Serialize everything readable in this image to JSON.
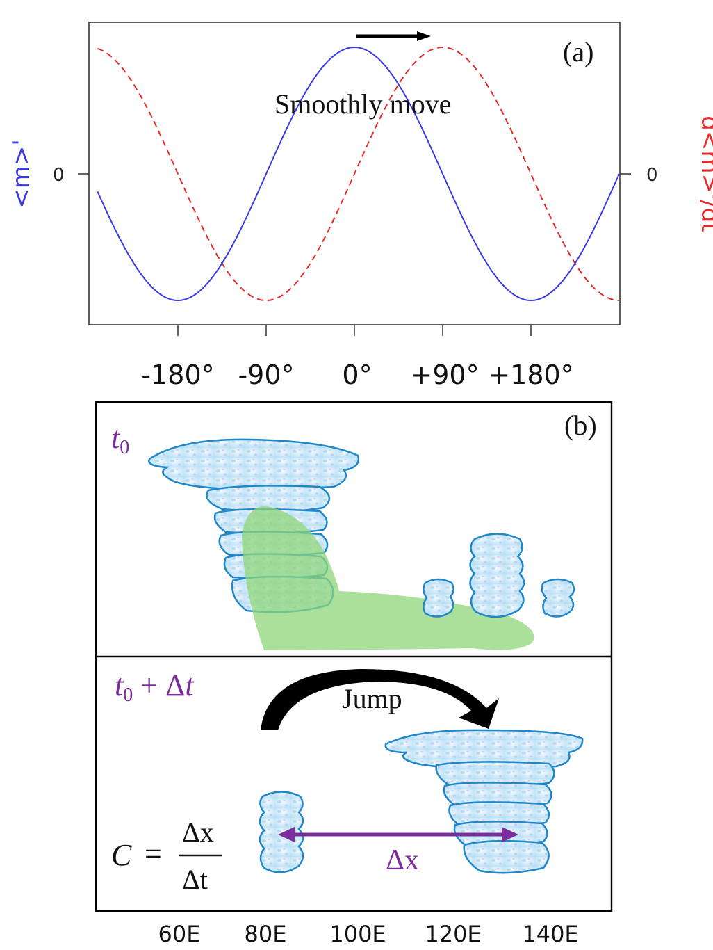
{
  "panel_a": {
    "label": "(a)",
    "left_axis_label": "<m>'",
    "right_axis_label": "d<m>'/dt",
    "left_zero": "0",
    "right_zero": "0",
    "annotation": "Smoothly move",
    "x_ticks": [
      "-180°",
      "-90°",
      "0°",
      "+90°",
      "+180°"
    ]
  },
  "panel_b": {
    "label": "(b)",
    "top_time": {
      "t": "t",
      "sub": "0"
    },
    "bottom_time": {
      "t": "t",
      "sub": "0",
      "rest": " + Δ",
      "t2": "t"
    },
    "jump_label": "Jump",
    "dx_label": "Δx",
    "formula": {
      "c": "C",
      "eq": "=",
      "num": "Δx",
      "den": "Δt"
    },
    "x_ticks": [
      "60E",
      "80E",
      "100E",
      "120E",
      "140E"
    ]
  },
  "colors": {
    "blue": "#3a3ae6",
    "red": "#e62a2a",
    "purple": "#7b2d9b",
    "cloud_outline": "#1f86c8",
    "cloud_fill": "#cfe8f7",
    "green": "#8fd67a"
  },
  "chart_data": {
    "type": "line",
    "x": [
      -270,
      -225,
      -180,
      -135,
      -90,
      -45,
      0,
      45,
      90,
      135,
      180,
      225,
      270
    ],
    "series": [
      {
        "name": "<m>'",
        "style": "solid",
        "color": "#3a3ae6"
      },
      {
        "name": "d<m>'/dt",
        "style": "dashed",
        "color": "#e62a2a"
      }
    ],
    "xticks": [
      "-180°",
      "-90°",
      "0°",
      "+90°",
      "+180°"
    ],
    "ylabel_left": "<m>'",
    "ylabel_right": "d<m>'/dt"
  }
}
